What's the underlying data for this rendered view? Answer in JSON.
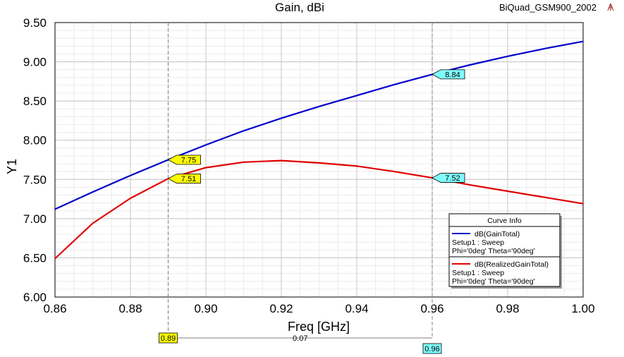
{
  "chart_data": {
    "type": "line",
    "title": "Gain, dBi",
    "project": "BiQuad_GSM900_2002",
    "xlabel": "Freq [GHz]",
    "ylabel": "Y1",
    "xlim": [
      0.86,
      1.0
    ],
    "ylim": [
      6.0,
      9.5
    ],
    "xticks": [
      0.86,
      0.88,
      0.9,
      0.92,
      0.94,
      0.96,
      0.98,
      1.0
    ],
    "xtick_labels": [
      "0.86",
      "0.88",
      "0.90",
      "0.92",
      "0.94",
      "0.96",
      "0.98",
      "1.00"
    ],
    "yticks": [
      6.0,
      6.5,
      7.0,
      7.5,
      8.0,
      8.5,
      9.0,
      9.5
    ],
    "ytick_labels": [
      "6.00",
      "6.50",
      "7.00",
      "7.50",
      "8.00",
      "8.50",
      "9.00",
      "9.50"
    ],
    "grid": true,
    "series": [
      {
        "name": "dB(GainTotal)",
        "color": "#0000cc",
        "x": [
          0.86,
          0.87,
          0.88,
          0.89,
          0.9,
          0.91,
          0.92,
          0.93,
          0.94,
          0.95,
          0.96,
          0.97,
          0.98,
          0.99,
          1.0
        ],
        "y": [
          7.12,
          7.34,
          7.55,
          7.75,
          7.94,
          8.12,
          8.28,
          8.43,
          8.57,
          8.71,
          8.84,
          8.96,
          9.07,
          9.17,
          9.26
        ]
      },
      {
        "name": "dB(RealizedGainTotal)",
        "color": "#e00000",
        "x": [
          0.86,
          0.87,
          0.88,
          0.89,
          0.9,
          0.91,
          0.92,
          0.93,
          0.94,
          0.95,
          0.96,
          0.97,
          0.98,
          0.99,
          1.0
        ],
        "y": [
          6.49,
          6.94,
          7.26,
          7.51,
          7.65,
          7.72,
          7.74,
          7.71,
          7.67,
          7.6,
          7.52,
          7.43,
          7.35,
          7.27,
          7.19
        ]
      }
    ],
    "markers": [
      {
        "x": 0.89,
        "label": "0.89",
        "color": "#ffff00",
        "values": [
          {
            "series": 0,
            "label": "7.75"
          },
          {
            "series": 1,
            "label": "7.51"
          }
        ]
      },
      {
        "x": 0.96,
        "label": "0.96",
        "color": "#80ffff",
        "values": [
          {
            "series": 0,
            "label": "8.84"
          },
          {
            "series": 1,
            "label": "7.52"
          }
        ]
      }
    ],
    "delta_label": "0.07",
    "legend": {
      "title": "Curve Info",
      "placement": "bottom-right",
      "entries": [
        {
          "name": "dB(GainTotal)",
          "line1": "Setup1 : Sweep",
          "line2": "Phi='0deg' Theta='90deg'",
          "color": "#0000cc"
        },
        {
          "name": "dB(RealizedGainTotal)",
          "line1": "Setup1 : Sweep",
          "line2": "Phi='0deg' Theta='90deg'",
          "color": "#e00000"
        }
      ]
    }
  }
}
